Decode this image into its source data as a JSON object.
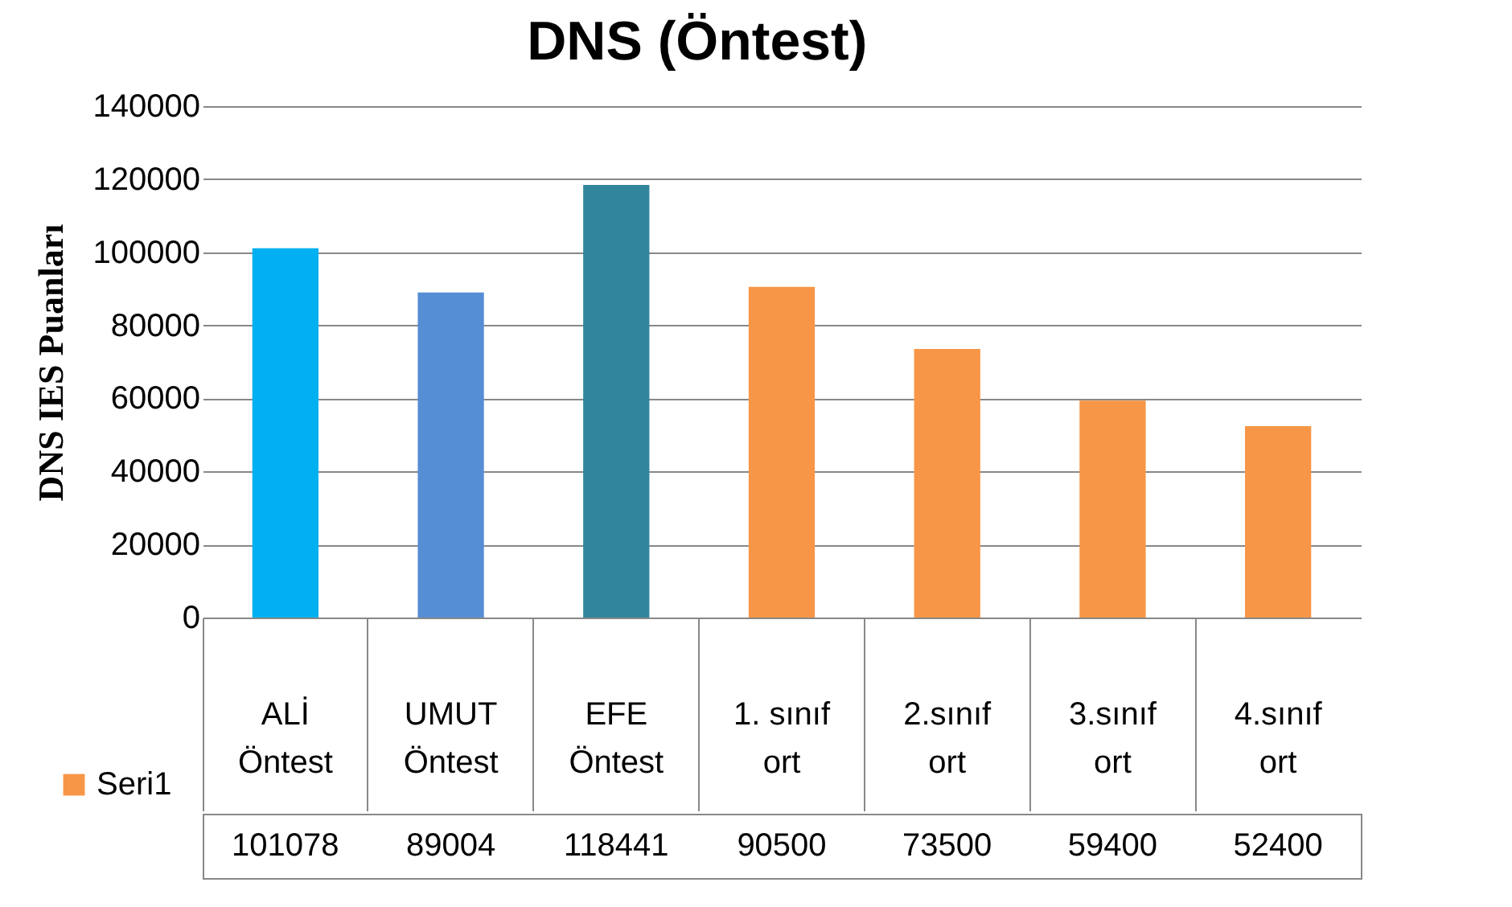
{
  "chart_data": {
    "type": "bar",
    "title": "DNS (Öntest)",
    "ylabel": "DNS IES Puanları",
    "categories": [
      "ALİ Öntest",
      "UMUT Öntest",
      "EFE Öntest",
      "1. sınıf ort",
      "2.sınıf ort",
      "3.sınıf ort",
      "4.sınıf ort"
    ],
    "series": [
      {
        "name": "Seri1",
        "color": "#f79646",
        "colors": [
          "#00b0f0",
          "#558ed5",
          "#31859c",
          "#f79646",
          "#f79646",
          "#f79646",
          "#f79646"
        ],
        "values": [
          101078,
          89004,
          118441,
          90500,
          73500,
          59400,
          52400
        ]
      }
    ],
    "ylim": [
      0,
      140000
    ],
    "yticks": [
      0,
      20000,
      40000,
      60000,
      80000,
      100000,
      120000,
      140000
    ],
    "grid": "y",
    "data_labels": true,
    "legend": "bottom left"
  }
}
